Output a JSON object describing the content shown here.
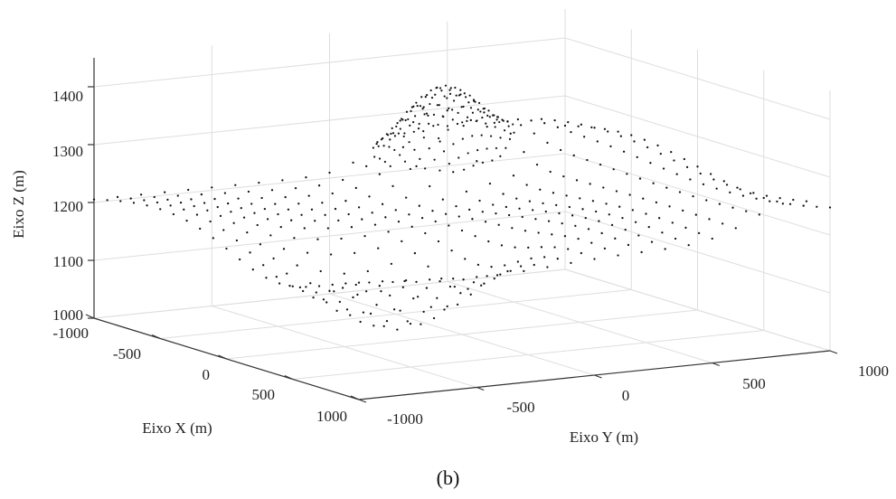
{
  "caption": "(b)",
  "colors": {
    "points": "#111111",
    "grid": "#dedede",
    "axis": "#333333",
    "text": "#222222"
  },
  "chart_data": {
    "type": "scatter3d",
    "title": "",
    "xlabel": "Eixo X (m)",
    "ylabel": "Eixo Y (m)",
    "zlabel": "Eixo Z (m)",
    "xlim": [
      -1000,
      1000
    ],
    "ylim": [
      -1000,
      1000
    ],
    "zlim": [
      1000,
      1450
    ],
    "x_ticks": [
      -1000,
      -500,
      0,
      500,
      1000
    ],
    "y_ticks": [
      -1000,
      -500,
      0,
      500,
      1000
    ],
    "z_ticks": [
      1000,
      1100,
      1200,
      1300,
      1400
    ],
    "x_tick_labels": [
      "-1000",
      "-500",
      "0",
      "500",
      "1000"
    ],
    "y_tick_labels": [
      "-1000",
      "-500",
      "0",
      "500",
      "1000"
    ],
    "z_tick_labels": [
      "1000",
      "1100",
      "1200",
      "1300",
      "1400"
    ],
    "grid": true,
    "marker": "point",
    "surface": {
      "description_of_sampled_terrain": "regular grid of elevation points",
      "grid_step": 100,
      "base_elevation": 1205,
      "hill": {
        "x": -850,
        "y": 400,
        "peak_elevation": 1355,
        "spread": 230
      },
      "valley": {
        "x": 350,
        "y": -450,
        "low_elevation": 1045,
        "spread": 420
      },
      "ridge": {
        "y": 850,
        "elevation_gain": 60
      }
    }
  }
}
